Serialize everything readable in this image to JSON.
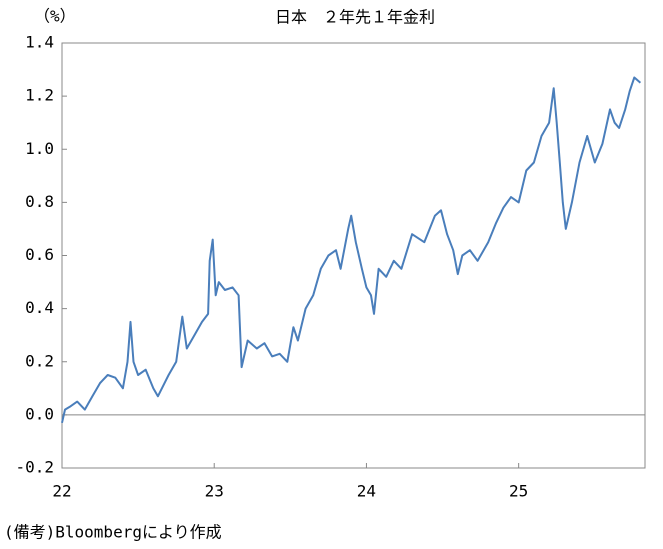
{
  "chart_data": {
    "type": "line",
    "title": "日本　２年先１年金利",
    "y_unit": "（%）",
    "note": "(備考)Bloombergにより作成",
    "color": "#4a7ebb",
    "x": [
      22.0,
      22.02,
      22.05,
      22.1,
      22.15,
      22.2,
      22.25,
      22.3,
      22.35,
      22.4,
      22.43,
      22.45,
      22.47,
      22.5,
      22.55,
      22.6,
      22.63,
      22.7,
      22.75,
      22.79,
      22.82,
      22.87,
      22.92,
      22.96,
      22.97,
      22.99,
      23.01,
      23.03,
      23.07,
      23.12,
      23.16,
      23.18,
      23.22,
      23.28,
      23.33,
      23.38,
      23.43,
      23.48,
      23.52,
      23.55,
      23.6,
      23.65,
      23.7,
      23.75,
      23.8,
      23.83,
      23.88,
      23.9,
      23.93,
      23.97,
      24.0,
      24.03,
      24.05,
      24.08,
      24.13,
      24.18,
      24.23,
      24.3,
      24.38,
      24.45,
      24.49,
      24.53,
      24.57,
      24.6,
      24.63,
      24.68,
      24.73,
      24.8,
      24.85,
      24.9,
      24.95,
      25.0,
      25.05,
      25.1,
      25.15,
      25.2,
      25.23,
      25.25,
      25.27,
      25.29,
      25.31,
      25.35,
      25.4,
      25.45,
      25.5,
      25.55,
      25.6,
      25.63,
      25.66,
      25.7,
      25.73,
      25.76,
      25.8
    ],
    "values": [
      -0.03,
      0.02,
      0.03,
      0.05,
      0.02,
      0.07,
      0.12,
      0.15,
      0.14,
      0.1,
      0.2,
      0.35,
      0.2,
      0.15,
      0.17,
      0.1,
      0.07,
      0.15,
      0.2,
      0.37,
      0.25,
      0.3,
      0.35,
      0.38,
      0.58,
      0.66,
      0.45,
      0.5,
      0.47,
      0.48,
      0.45,
      0.18,
      0.28,
      0.25,
      0.27,
      0.22,
      0.23,
      0.2,
      0.33,
      0.28,
      0.4,
      0.45,
      0.55,
      0.6,
      0.62,
      0.55,
      0.7,
      0.75,
      0.65,
      0.55,
      0.48,
      0.45,
      0.38,
      0.55,
      0.52,
      0.58,
      0.55,
      0.68,
      0.65,
      0.75,
      0.77,
      0.68,
      0.62,
      0.53,
      0.6,
      0.62,
      0.58,
      0.65,
      0.72,
      0.78,
      0.82,
      0.8,
      0.92,
      0.95,
      1.05,
      1.1,
      1.23,
      1.1,
      0.95,
      0.8,
      0.7,
      0.8,
      0.95,
      1.05,
      0.95,
      1.02,
      1.15,
      1.1,
      1.08,
      1.15,
      1.22,
      1.27,
      1.25
    ],
    "xlim": [
      22,
      25.83
    ],
    "xticks": [
      22,
      23,
      24,
      25
    ],
    "ylim": [
      -0.2,
      1.4
    ],
    "yticks": [
      -0.2,
      {
        "value": 0,
        "label": "0.0"
      },
      0.2,
      0.4,
      0.6,
      0.8,
      {
        "value": 1,
        "label": "1.0"
      },
      1.2,
      1.4
    ],
    "zero_line": true
  }
}
